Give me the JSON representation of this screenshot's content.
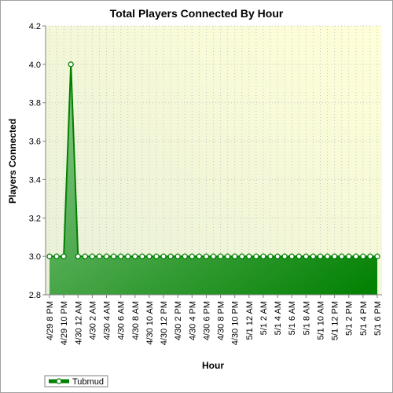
{
  "chart_data": {
    "type": "area",
    "title": "Total Players Connected By Hour",
    "xlabel": "Hour",
    "ylabel": "Players Connected",
    "ylim": [
      2.8,
      4.2
    ],
    "yticks": [
      2.8,
      3.0,
      3.2,
      3.4,
      3.6,
      3.8,
      4.0,
      4.2
    ],
    "grid": true,
    "legend": "bottom-left",
    "categories": [
      "4/29 8 PM",
      "4/29 9 PM",
      "4/29 10 PM",
      "4/29 11 PM",
      "4/30 12 AM",
      "4/30 1 AM",
      "4/30 2 AM",
      "4/30 3 AM",
      "4/30 4 AM",
      "4/30 5 AM",
      "4/30 6 AM",
      "4/30 7 AM",
      "4/30 8 AM",
      "4/30 9 AM",
      "4/30 10 AM",
      "4/30 11 AM",
      "4/30 12 PM",
      "4/30 1 PM",
      "4/30 2 PM",
      "4/30 3 PM",
      "4/30 4 PM",
      "4/30 5 PM",
      "4/30 6 PM",
      "4/30 7 PM",
      "4/30 8 PM",
      "4/30 9 PM",
      "4/30 10 PM",
      "4/30 11 PM",
      "5/1 12 AM",
      "5/1 1 AM",
      "5/1 2 AM",
      "5/1 3 AM",
      "5/1 4 AM",
      "5/1 5 AM",
      "5/1 6 AM",
      "5/1 7 AM",
      "5/1 8 AM",
      "5/1 9 AM",
      "5/1 10 AM",
      "5/1 11 AM",
      "5/1 12 PM",
      "5/1 1 PM",
      "5/1 2 PM",
      "5/1 3 PM",
      "5/1 4 PM",
      "5/1 5 PM",
      "5/1 6 PM"
    ],
    "x_tick_labels": [
      "4/29 8 PM",
      "4/29 10 PM",
      "4/30 12 AM",
      "4/30 2 AM",
      "4/30 4 AM",
      "4/30 6 AM",
      "4/30 8 AM",
      "4/30 10 AM",
      "4/30 12 PM",
      "4/30 2 PM",
      "4/30 4 PM",
      "4/30 6 PM",
      "4/30 8 PM",
      "4/30 10 PM",
      "5/1 12 AM",
      "5/1 2 AM",
      "5/1 4 AM",
      "5/1 6 AM",
      "5/1 8 AM",
      "5/1 10 AM",
      "5/1 12 PM",
      "5/1 2 PM",
      "5/1 4 PM",
      "5/1 6 PM"
    ],
    "series": [
      {
        "name": "Tubmud",
        "values": [
          3,
          3,
          3,
          4,
          3,
          3,
          3,
          3,
          3,
          3,
          3,
          3,
          3,
          3,
          3,
          3,
          3,
          3,
          3,
          3,
          3,
          3,
          3,
          3,
          3,
          3,
          3,
          3,
          3,
          3,
          3,
          3,
          3,
          3,
          3,
          3,
          3,
          3,
          3,
          3,
          3,
          3,
          3,
          3,
          3,
          3,
          3
        ]
      }
    ],
    "colors": {
      "line": "#008000",
      "fill_start": "#90cc90",
      "fill_end": "#008000",
      "plot_bg_start": "#e8f0d8",
      "plot_bg_end": "#ffffd8"
    }
  }
}
